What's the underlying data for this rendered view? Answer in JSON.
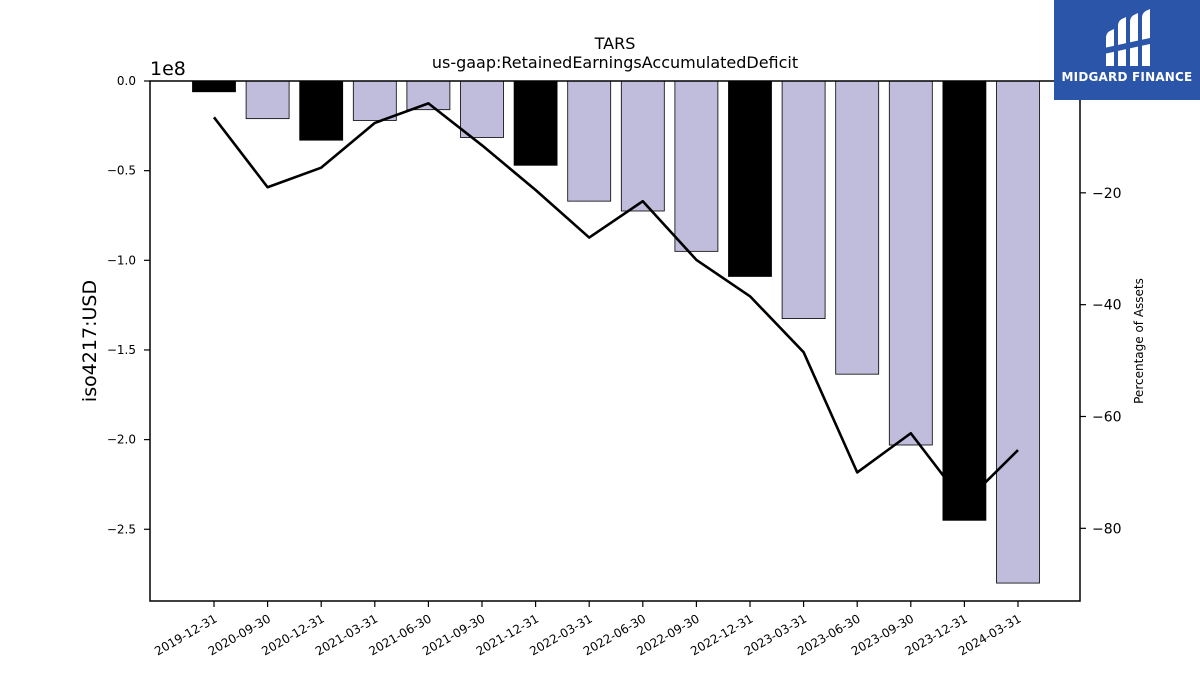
{
  "chart_data": {
    "type": "bar",
    "title": "TARS",
    "subtitle": "us-gaap:RetainedEarningsAccumulatedDeficit",
    "ylabel": "iso4217:USD",
    "y_offset_label": "1e8",
    "y2label": "Percentage of Assets",
    "categories": [
      "2019-12-31",
      "2020-09-30",
      "2020-12-31",
      "2021-03-31",
      "2021-06-30",
      "2021-09-30",
      "2021-12-31",
      "2022-03-31",
      "2022-06-30",
      "2022-09-30",
      "2022-12-31",
      "2023-03-31",
      "2023-06-30",
      "2023-09-30",
      "2023-12-31",
      "2024-03-31"
    ],
    "values": [
      -6000000,
      -21000000,
      -33000000,
      -22000000,
      -16000000,
      -31500000,
      -47000000,
      -67000000,
      -72500000,
      -95000000,
      -109000000,
      -132500000,
      -163500000,
      -203000000,
      -245000000,
      -280000000
    ],
    "bar_colors": [
      "#000000",
      "#bfbcdc",
      "#000000",
      "#bfbcdc",
      "#bfbcdc",
      "#bfbcdc",
      "#000000",
      "#bfbcdc",
      "#bfbcdc",
      "#bfbcdc",
      "#000000",
      "#bfbcdc",
      "#bfbcdc",
      "#bfbcdc",
      "#000000",
      "#bfbcdc"
    ],
    "ylim": [
      -290000000,
      0
    ],
    "yticks": [
      0,
      -50000000,
      -100000000,
      -150000000,
      -200000000,
      -250000000
    ],
    "ytick_labels": [
      "0.0",
      "−0.5",
      "−1.0",
      "−1.5",
      "−2.0",
      "−2.5"
    ],
    "line_series": {
      "values": [
        -6.5,
        -19,
        -15.5,
        -7.5,
        -4,
        -11.5,
        -19.5,
        -28,
        -21.5,
        -32,
        -38.5,
        -48.5,
        -70,
        -63,
        -75.5,
        -66
      ]
    },
    "y2lim": [
      -93,
      0
    ],
    "y2ticks": [
      -20,
      -40,
      -60,
      -80
    ],
    "y2tick_labels": [
      "−20",
      "−40",
      "−60",
      "−80"
    ]
  },
  "logo": {
    "text": "MIDGARD FINANCE",
    "bg_color": "#2a55a8"
  }
}
